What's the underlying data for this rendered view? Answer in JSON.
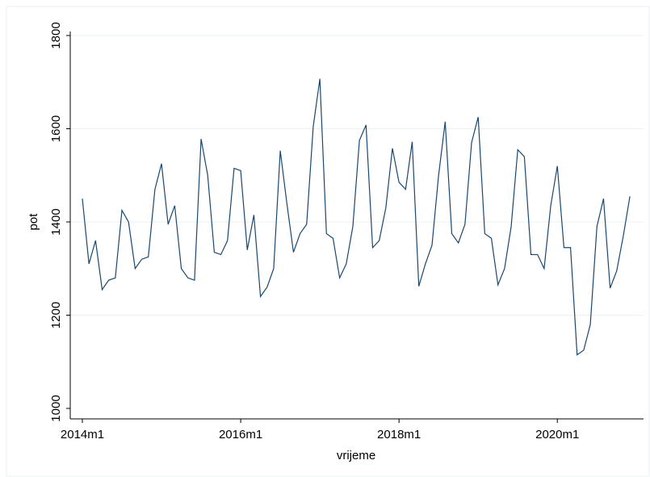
{
  "chart_data": {
    "type": "line",
    "xlabel": "vrijeme",
    "ylabel": "pot",
    "categories": [
      "2014m1",
      "2014m2",
      "2014m3",
      "2014m4",
      "2014m5",
      "2014m6",
      "2014m7",
      "2014m8",
      "2014m9",
      "2014m10",
      "2014m11",
      "2014m12",
      "2015m1",
      "2015m2",
      "2015m3",
      "2015m4",
      "2015m5",
      "2015m6",
      "2015m7",
      "2015m8",
      "2015m9",
      "2015m10",
      "2015m11",
      "2015m12",
      "2016m1",
      "2016m2",
      "2016m3",
      "2016m4",
      "2016m5",
      "2016m6",
      "2016m7",
      "2016m8",
      "2016m9",
      "2016m10",
      "2016m11",
      "2016m12",
      "2017m1",
      "2017m2",
      "2017m3",
      "2017m4",
      "2017m5",
      "2017m6",
      "2017m7",
      "2017m8",
      "2017m9",
      "2017m10",
      "2017m11",
      "2017m12",
      "2018m1",
      "2018m2",
      "2018m3",
      "2018m4",
      "2018m5",
      "2018m6",
      "2018m7",
      "2018m8",
      "2018m9",
      "2018m10",
      "2018m11",
      "2018m12",
      "2019m1",
      "2019m2",
      "2019m3",
      "2019m4",
      "2019m5",
      "2019m6",
      "2019m7",
      "2019m8",
      "2019m9",
      "2019m10",
      "2019m11",
      "2019m12",
      "2020m1",
      "2020m2",
      "2020m3",
      "2020m4",
      "2020m5",
      "2020m6",
      "2020m7",
      "2020m8",
      "2020m9",
      "2020m10",
      "2020m11",
      "2020m12"
    ],
    "values": [
      1450,
      1310,
      1360,
      1255,
      1275,
      1280,
      1425,
      1400,
      1300,
      1320,
      1325,
      1470,
      1525,
      1395,
      1435,
      1300,
      1280,
      1275,
      1578,
      1500,
      1335,
      1330,
      1360,
      1515,
      1510,
      1340,
      1415,
      1240,
      1260,
      1300,
      1553,
      1440,
      1335,
      1375,
      1395,
      1605,
      1707,
      1375,
      1365,
      1280,
      1310,
      1390,
      1575,
      1608,
      1345,
      1360,
      1430,
      1558,
      1485,
      1470,
      1572,
      1262,
      1310,
      1350,
      1500,
      1615,
      1375,
      1355,
      1395,
      1570,
      1625,
      1375,
      1365,
      1265,
      1300,
      1390,
      1555,
      1540,
      1330,
      1330,
      1300,
      1435,
      1520,
      1345,
      1345,
      1115,
      1125,
      1180,
      1390,
      1450,
      1258,
      1295,
      1370,
      1455
    ],
    "color": "#1a476f",
    "xticks": [
      "2014m1",
      "2016m1",
      "2018m1",
      "2020m1"
    ],
    "ylim": [
      1000,
      1800
    ],
    "yticks": [
      1000,
      1200,
      1400,
      1600,
      1800
    ],
    "grid": true
  }
}
